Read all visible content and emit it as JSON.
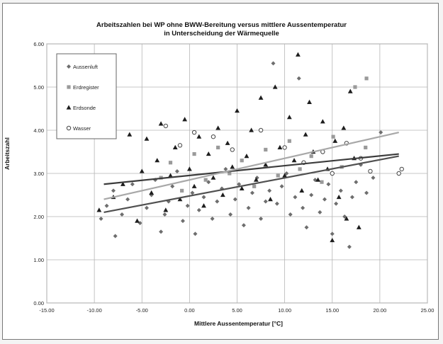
{
  "chart_data": {
    "type": "scatter",
    "title": [
      "Arbeitszahlen bei WP ohne BWW-Bereitung  versus mittlere Aussentemperatur",
      "in Unterscheidung der Wärmequelle"
    ],
    "xlabel": "Mittlere Aussentemperatur [°C]",
    "ylabel": "Arbeitszahl",
    "xlim": [
      -15,
      25
    ],
    "ylim": [
      0,
      6
    ],
    "x_ticks": [
      "-15.00",
      "-10.00",
      "-5.00",
      "0.00",
      "5.00",
      "10.00",
      "15.00",
      "20.00",
      "25.00"
    ],
    "y_ticks": [
      "0.00",
      "1.00",
      "2.00",
      "3.00",
      "4.00",
      "5.00",
      "6.00"
    ],
    "grid": true,
    "legend_position": "top-left",
    "series": [
      {
        "name": "Aussenluft",
        "marker": "diamond",
        "color": "#6e6e6e",
        "points": [
          [
            -9.3,
            1.95
          ],
          [
            -8.7,
            2.25
          ],
          [
            -8.0,
            2.6
          ],
          [
            -7.8,
            1.55
          ],
          [
            -7.1,
            2.05
          ],
          [
            -6.5,
            2.4
          ],
          [
            -6.0,
            2.75
          ],
          [
            -5.2,
            1.85
          ],
          [
            -4.5,
            2.2
          ],
          [
            -4.0,
            2.5
          ],
          [
            -3.6,
            2.85
          ],
          [
            -3.0,
            1.65
          ],
          [
            -2.6,
            2.05
          ],
          [
            -2.2,
            2.35
          ],
          [
            -1.8,
            2.7
          ],
          [
            -1.3,
            3.05
          ],
          [
            -0.7,
            1.9
          ],
          [
            -0.2,
            2.25
          ],
          [
            0.3,
            2.55
          ],
          [
            0.6,
            1.6
          ],
          [
            1.0,
            2.15
          ],
          [
            1.5,
            2.45
          ],
          [
            2.0,
            2.8
          ],
          [
            2.4,
            1.95
          ],
          [
            2.9,
            2.35
          ],
          [
            3.4,
            2.65
          ],
          [
            3.8,
            3.1
          ],
          [
            4.3,
            2.05
          ],
          [
            4.8,
            2.4
          ],
          [
            5.2,
            2.75
          ],
          [
            5.7,
            1.8
          ],
          [
            6.2,
            2.2
          ],
          [
            6.6,
            2.55
          ],
          [
            7.1,
            2.9
          ],
          [
            7.5,
            1.95
          ],
          [
            8.0,
            2.35
          ],
          [
            8.4,
            2.6
          ],
          [
            8.8,
            5.55
          ],
          [
            9.2,
            2.3
          ],
          [
            9.7,
            2.7
          ],
          [
            10.2,
            3.0
          ],
          [
            10.6,
            2.05
          ],
          [
            11.1,
            2.45
          ],
          [
            11.5,
            5.2
          ],
          [
            11.9,
            2.2
          ],
          [
            12.3,
            1.75
          ],
          [
            12.8,
            2.5
          ],
          [
            13.2,
            2.85
          ],
          [
            13.7,
            2.1
          ],
          [
            14.2,
            2.4
          ],
          [
            14.6,
            2.75
          ],
          [
            15.0,
            1.6
          ],
          [
            15.4,
            2.3
          ],
          [
            15.9,
            2.6
          ],
          [
            16.3,
            2.0
          ],
          [
            16.8,
            1.3
          ],
          [
            17.1,
            2.45
          ],
          [
            17.5,
            2.8
          ],
          [
            18.0,
            3.2
          ],
          [
            18.6,
            2.55
          ],
          [
            19.3,
            2.9
          ],
          [
            20.1,
            3.95
          ]
        ]
      },
      {
        "name": "Erdregister",
        "marker": "square",
        "color": "#9a9a9a",
        "points": [
          [
            -3.0,
            2.9
          ],
          [
            -2.0,
            3.25
          ],
          [
            -0.8,
            2.6
          ],
          [
            0.5,
            3.45
          ],
          [
            1.7,
            2.85
          ],
          [
            3.0,
            3.6
          ],
          [
            4.2,
            3.0
          ],
          [
            5.5,
            3.3
          ],
          [
            6.8,
            2.7
          ],
          [
            8.0,
            3.55
          ],
          [
            9.3,
            2.95
          ],
          [
            10.5,
            3.75
          ],
          [
            11.6,
            3.1
          ],
          [
            12.8,
            3.4
          ],
          [
            13.9,
            2.8
          ],
          [
            15.1,
            3.85
          ],
          [
            16.0,
            3.15
          ],
          [
            17.4,
            5.0
          ],
          [
            18.5,
            3.6
          ],
          [
            18.6,
            5.2
          ]
        ]
      },
      {
        "name": "Erdsonde",
        "marker": "triangle",
        "color": "#1e1e1e",
        "points": [
          [
            -9.5,
            2.15
          ],
          [
            -8.0,
            2.45
          ],
          [
            -7.0,
            2.75
          ],
          [
            -6.3,
            3.9
          ],
          [
            -5.5,
            1.9
          ],
          [
            -5.0,
            3.05
          ],
          [
            -4.5,
            3.8
          ],
          [
            -4.0,
            2.55
          ],
          [
            -3.4,
            3.3
          ],
          [
            -3.0,
            4.15
          ],
          [
            -2.5,
            2.15
          ],
          [
            -2.0,
            2.95
          ],
          [
            -1.5,
            3.6
          ],
          [
            -1.0,
            2.4
          ],
          [
            -0.5,
            4.25
          ],
          [
            0.0,
            3.1
          ],
          [
            0.5,
            2.7
          ],
          [
            1.0,
            3.85
          ],
          [
            1.5,
            2.25
          ],
          [
            2.0,
            3.45
          ],
          [
            2.5,
            2.9
          ],
          [
            3.0,
            4.05
          ],
          [
            3.5,
            2.5
          ],
          [
            4.0,
            3.7
          ],
          [
            4.5,
            3.15
          ],
          [
            5.0,
            4.45
          ],
          [
            5.5,
            2.65
          ],
          [
            6.0,
            3.4
          ],
          [
            6.5,
            4.0
          ],
          [
            7.0,
            2.85
          ],
          [
            7.5,
            4.75
          ],
          [
            8.0,
            3.2
          ],
          [
            8.5,
            2.4
          ],
          [
            9.0,
            5.0
          ],
          [
            9.5,
            3.6
          ],
          [
            10.0,
            2.95
          ],
          [
            10.5,
            4.3
          ],
          [
            11.0,
            3.3
          ],
          [
            11.4,
            5.75
          ],
          [
            11.8,
            2.6
          ],
          [
            12.2,
            3.9
          ],
          [
            12.6,
            4.65
          ],
          [
            13.0,
            3.5
          ],
          [
            13.5,
            2.85
          ],
          [
            14.0,
            4.2
          ],
          [
            14.5,
            3.1
          ],
          [
            15.0,
            1.45
          ],
          [
            15.3,
            3.75
          ],
          [
            15.7,
            2.45
          ],
          [
            16.2,
            4.05
          ],
          [
            16.5,
            1.95
          ],
          [
            16.9,
            4.9
          ],
          [
            17.3,
            3.35
          ],
          [
            17.8,
            1.75
          ]
        ]
      },
      {
        "name": "Wasser",
        "marker": "circle",
        "color": "#444444",
        "points": [
          [
            -2.5,
            4.1
          ],
          [
            -1.0,
            3.65
          ],
          [
            0.5,
            3.95
          ],
          [
            2.5,
            3.85
          ],
          [
            4.5,
            3.55
          ],
          [
            7.5,
            4.0
          ],
          [
            10.0,
            3.6
          ],
          [
            12.0,
            3.25
          ],
          [
            14.0,
            3.5
          ],
          [
            15.0,
            3.0
          ],
          [
            16.5,
            3.7
          ],
          [
            18.0,
            3.35
          ],
          [
            19.0,
            3.05
          ],
          [
            22.0,
            3.0
          ],
          [
            22.3,
            3.1
          ]
        ]
      }
    ],
    "trendlines": [
      {
        "x": [
          -9,
          22
        ],
        "y": [
          2.75,
          3.45
        ],
        "color": "#3c3c3c"
      },
      {
        "x": [
          -9,
          22
        ],
        "y": [
          2.1,
          3.4
        ],
        "color": "#505050"
      },
      {
        "x": [
          -9,
          22
        ],
        "y": [
          2.4,
          3.95
        ],
        "color": "#a8a8a8"
      }
    ]
  }
}
